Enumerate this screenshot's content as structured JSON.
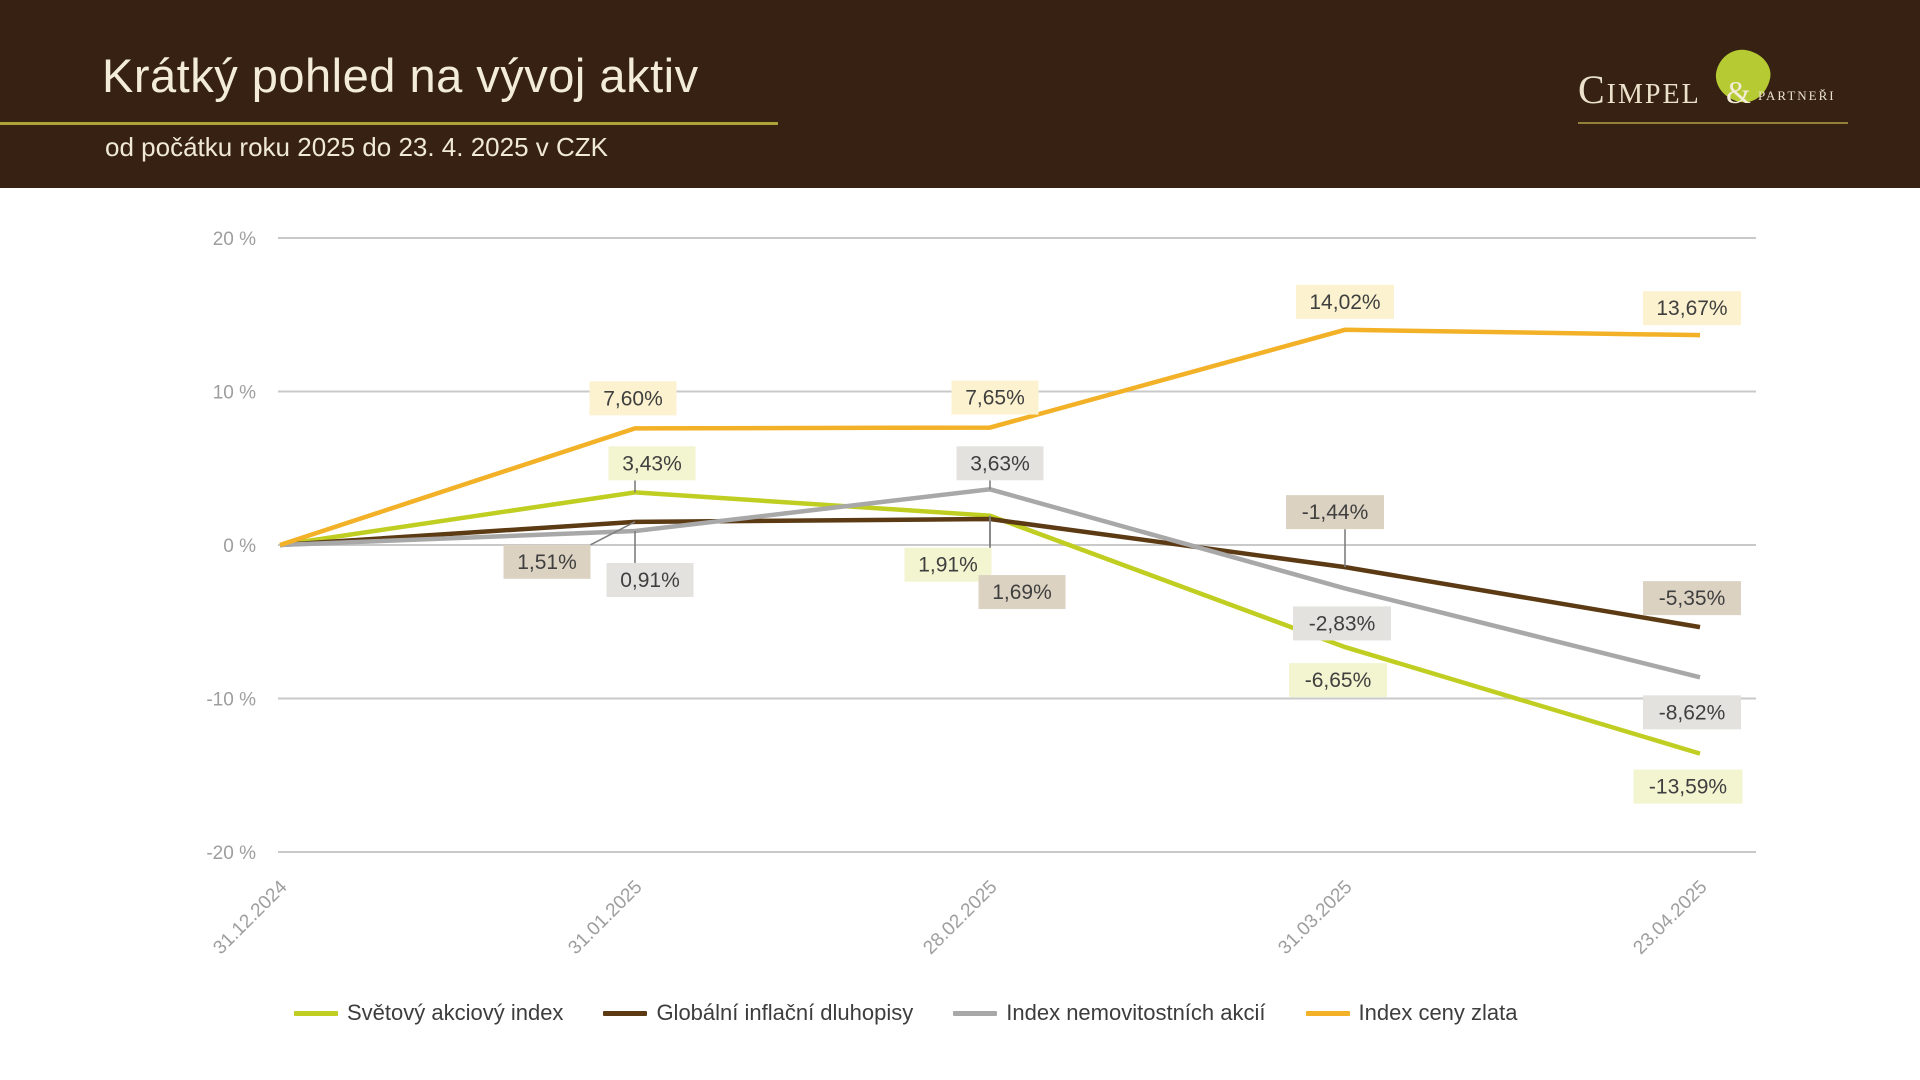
{
  "header": {
    "title": "Krátký pohled na vývoj aktiv",
    "subtitle": "od počátku roku 2025 do 23. 4. 2025 v CZK",
    "logo": {
      "name": "Cimpel",
      "amp": "&",
      "suffix": "partneři"
    }
  },
  "colors": {
    "header_bg": "#362112",
    "header_text": "#f3ecd8",
    "accent_rule": "#aea339",
    "grid": "#c9c9c9",
    "axis_text": "#9e9e9e",
    "label_text": "#3f3f3f",
    "leader_line": "#7f7f7f"
  },
  "chart_data": {
    "type": "line",
    "title": "Krátký pohled na vývoj aktiv",
    "subtitle": "od počátku roku 2025 do 23. 4. 2025 v CZK",
    "x_labels": [
      "31.12.2024",
      "31.01.2025",
      "28.02.2025",
      "31.03.2025",
      "23.04.2025"
    ],
    "y_ticks": [
      "20 %",
      "10 %",
      "0 %",
      "-10 %",
      "-20 %"
    ],
    "y_tick_values": [
      20,
      10,
      0,
      -10,
      -20
    ],
    "ylim": [
      -20,
      20
    ],
    "grid": true,
    "legend_position": "bottom",
    "value_unit": "%",
    "series": [
      {
        "name": "Světový akciový index",
        "color": "#c0cd21",
        "label_bg": "#f2f5cf",
        "values": [
          0,
          3.43,
          1.91,
          -6.65,
          -13.59
        ],
        "labels": [
          null,
          "3,43%",
          "1,91%",
          "-6,65%",
          "-13,59%"
        ]
      },
      {
        "name": "Globální inflační dluhopisy",
        "color": "#5b3a14",
        "label_bg": "#dcd2c2",
        "values": [
          0,
          1.51,
          1.69,
          -1.44,
          -5.35
        ],
        "labels": [
          null,
          "1,51%",
          "1,69%",
          "-1,44%",
          "-5,35%"
        ]
      },
      {
        "name": "Index nemovitostních akcií",
        "color": "#a8a8a8",
        "label_bg": "#e4e2df",
        "values": [
          0,
          0.91,
          3.63,
          -2.83,
          -8.62
        ],
        "labels": [
          null,
          "0,91%",
          "3,63%",
          "-2,83%",
          "-8,62%"
        ]
      },
      {
        "name": "Index ceny zlata",
        "color": "#f2b127",
        "label_bg": "#fcf2cf",
        "values": [
          0,
          7.6,
          7.65,
          14.02,
          13.67
        ],
        "labels": [
          null,
          "7,60%",
          "7,65%",
          "14,02%",
          "13,67%"
        ]
      }
    ]
  }
}
